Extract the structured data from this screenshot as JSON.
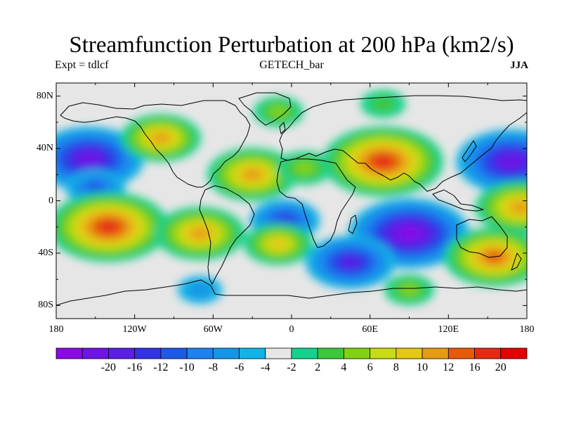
{
  "header": {
    "title": "Streamfunction Perturbation at 200 hPa (km2/s)",
    "left_label": "Expt = tdlcf",
    "center_label": "GETECH_bar",
    "right_label": "JJA"
  },
  "map": {
    "projection": "cylindrical-equidistant",
    "lon_range": [
      -180,
      180
    ],
    "lat_range": [
      -90,
      90
    ],
    "lat_ticks": [
      {
        "lat": 80,
        "label": "80N"
      },
      {
        "lat": 40,
        "label": "40N"
      },
      {
        "lat": 0,
        "label": "0"
      },
      {
        "lat": -40,
        "label": "40S"
      },
      {
        "lat": -80,
        "label": "80S"
      }
    ],
    "lon_ticks": [
      {
        "lon": -180,
        "label": "180"
      },
      {
        "lon": -120,
        "label": "120W"
      },
      {
        "lon": -60,
        "label": "60W"
      },
      {
        "lon": 0,
        "label": "0"
      },
      {
        "lon": 60,
        "label": "60E"
      },
      {
        "lon": 120,
        "label": "120E"
      },
      {
        "lon": 180,
        "label": "180"
      }
    ],
    "background_color": "#e6e6e6",
    "coastline_color": "#000000"
  },
  "colorbar": {
    "colors": [
      "#8a0ae6",
      "#6e14e6",
      "#5a1ee6",
      "#3232e6",
      "#1e5ae6",
      "#1e82f0",
      "#1496e6",
      "#12b4e6",
      "#e6e6e6",
      "#14d28c",
      "#3cc83c",
      "#82d214",
      "#c8dc14",
      "#e6c814",
      "#e69b14",
      "#e65a0a",
      "#e62814",
      "#e60000"
    ],
    "labels": [
      "-20",
      "-16",
      "-12",
      "-10",
      "-8",
      "-6",
      "-4",
      "-2",
      "2",
      "4",
      "6",
      "8",
      "10",
      "12",
      "16",
      "20"
    ]
  },
  "anomalies": [
    {
      "name": "north-pacific-low",
      "lon": -155,
      "lat": 32,
      "peak": -18
    },
    {
      "name": "north-pacific-low-south",
      "lon": -150,
      "lat": 10,
      "peak": -8
    },
    {
      "name": "west-us-high",
      "lon": -100,
      "lat": 48,
      "peak": 12
    },
    {
      "name": "central-atlantic-high",
      "lon": -30,
      "lat": 20,
      "peak": 14
    },
    {
      "name": "eastern-atlantic-high",
      "lon": 10,
      "lat": 25,
      "peak": 7
    },
    {
      "name": "siberian-high",
      "lon": -10,
      "lat": 68,
      "peak": 6
    },
    {
      "name": "arctic-high",
      "lon": 70,
      "lat": 74,
      "peak": 5
    },
    {
      "name": "south-asian-high",
      "lon": 70,
      "lat": 30,
      "peak": 20
    },
    {
      "name": "northwest-pacific-low",
      "lon": 168,
      "lat": 30,
      "peak": -18
    },
    {
      "name": "east-pacific-high",
      "lon": 175,
      "lat": -5,
      "peak": 14
    },
    {
      "name": "tropical-pacific-high",
      "lon": -140,
      "lat": -20,
      "peak": 20
    },
    {
      "name": "tropical-pacific-high-east",
      "lon": -70,
      "lat": -25,
      "peak": 14
    },
    {
      "name": "south-america-low",
      "lon": -5,
      "lat": -15,
      "peak": -10
    },
    {
      "name": "south-atlantic-high",
      "lon": -10,
      "lat": -33,
      "peak": 10
    },
    {
      "name": "indian-ocean-low",
      "lon": 90,
      "lat": -25,
      "peak": -20
    },
    {
      "name": "south-indian-low",
      "lon": 45,
      "lat": -47,
      "peak": -14
    },
    {
      "name": "australia-high",
      "lon": 155,
      "lat": -43,
      "peak": 16
    },
    {
      "name": "southern-ocean-high",
      "lon": 90,
      "lat": -68,
      "peak": 6
    },
    {
      "name": "southern-pacific-low",
      "lon": -70,
      "lat": -68,
      "peak": -5
    }
  ]
}
